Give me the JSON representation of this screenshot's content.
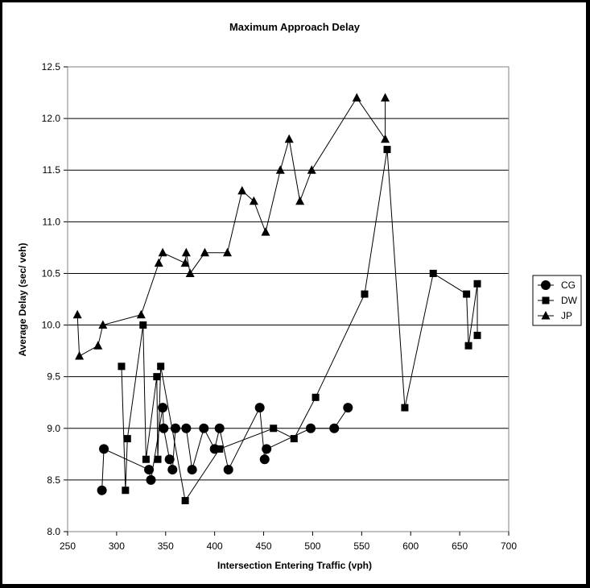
{
  "chart_data": {
    "type": "scatter",
    "title": "Maximum Approach Delay",
    "xlabel": "Intersection Entering Traffic (vph)",
    "ylabel": "Average Delay (sec/ veh)",
    "xlim": [
      250,
      700
    ],
    "ylim": [
      8.0,
      12.5
    ],
    "x_ticks": [
      "250",
      "300",
      "350",
      "400",
      "450",
      "500",
      "550",
      "600",
      "650",
      "700"
    ],
    "y_ticks": [
      "8.0",
      "8.5",
      "9.0",
      "9.5",
      "10.0",
      "10.5",
      "11.0",
      "11.5",
      "12.0",
      "12.5"
    ],
    "grid": "horizontal",
    "legend_position": "right",
    "series": [
      {
        "name": "CG",
        "marker": "circle",
        "points": [
          [
            285,
            8.4
          ],
          [
            287,
            8.8
          ],
          [
            333,
            8.6
          ],
          [
            335,
            8.5
          ],
          [
            347,
            9.2
          ],
          [
            348,
            9.0
          ],
          [
            354,
            8.7
          ],
          [
            357,
            8.6
          ],
          [
            360,
            9.0
          ],
          [
            371,
            9.0
          ],
          [
            377,
            8.6
          ],
          [
            389,
            9.0
          ],
          [
            400,
            8.8
          ],
          [
            405,
            9.0
          ],
          [
            414,
            8.6
          ],
          [
            446,
            9.2
          ],
          [
            451,
            8.7
          ],
          [
            453,
            8.8
          ],
          [
            498,
            9.0
          ],
          [
            522,
            9.0
          ],
          [
            536,
            9.2
          ]
        ]
      },
      {
        "name": "DW",
        "marker": "square",
        "points": [
          [
            305,
            9.6
          ],
          [
            309,
            8.4
          ],
          [
            311,
            8.9
          ],
          [
            327,
            10.0
          ],
          [
            330,
            8.7
          ],
          [
            341,
            9.5
          ],
          [
            342,
            8.7
          ],
          [
            345,
            9.6
          ],
          [
            370,
            8.3
          ],
          [
            405,
            8.8
          ],
          [
            460,
            9.0
          ],
          [
            481,
            8.9
          ],
          [
            503,
            9.3
          ],
          [
            553,
            10.3
          ],
          [
            576,
            11.7
          ],
          [
            594,
            9.2
          ],
          [
            623,
            10.5
          ],
          [
            657,
            10.3
          ],
          [
            659,
            9.8
          ],
          [
            668,
            10.4
          ],
          [
            668,
            9.9
          ]
        ]
      },
      {
        "name": "JP",
        "marker": "triangle",
        "points": [
          [
            260,
            10.1
          ],
          [
            262,
            9.7
          ],
          [
            281,
            9.8
          ],
          [
            286,
            10.0
          ],
          [
            325,
            10.1
          ],
          [
            343,
            10.6
          ],
          [
            347,
            10.7
          ],
          [
            370,
            10.6
          ],
          [
            371,
            10.7
          ],
          [
            375,
            10.5
          ],
          [
            390,
            10.7
          ],
          [
            413,
            10.7
          ],
          [
            428,
            11.3
          ],
          [
            440,
            11.2
          ],
          [
            452,
            10.9
          ],
          [
            467,
            11.5
          ],
          [
            476,
            11.8
          ],
          [
            487,
            11.2
          ],
          [
            499,
            11.5
          ],
          [
            545,
            12.2
          ],
          [
            574,
            11.8
          ],
          [
            574,
            12.2
          ]
        ]
      }
    ]
  }
}
